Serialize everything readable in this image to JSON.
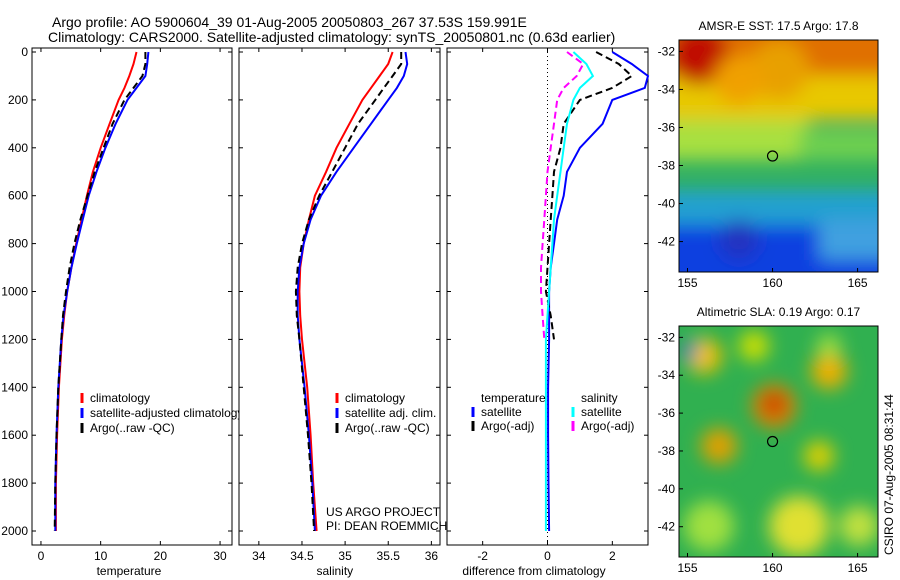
{
  "title_line1": "Argo profile: AO 5900604_39 01-Aug-2005 20050803_267 37.53S 159.991E",
  "title_line2": "Climatology: CARS2000. Satellite-adjusted climatology: synTS_20050801.nc (0.63d earlier)",
  "credit": [
    "US ARGO PROJECT",
    "PI: DEAN ROEMMICH"
  ],
  "side_stamp": "CSIRO 07-Aug-2005 08:31:44",
  "chart_data": [
    {
      "type": "line",
      "xlabel": "temperature",
      "xlim": [
        -1.5,
        32
      ],
      "xticks": [
        0,
        10,
        20,
        30
      ],
      "ylim": [
        0,
        2000
      ],
      "yticks": [
        0,
        200,
        400,
        600,
        800,
        1000,
        1200,
        1400,
        1600,
        1800,
        2000
      ],
      "yreversed": true,
      "pressure": [
        0,
        50,
        100,
        150,
        200,
        300,
        400,
        500,
        600,
        700,
        800,
        900,
        1000,
        1100,
        1200,
        1400,
        1600,
        1800,
        2000
      ],
      "legend": [
        "climatology",
        "satellite-adjusted climatology",
        "Argo(..raw -QC)"
      ],
      "series": [
        {
          "name": "climatology",
          "color": "#ff0000",
          "dash": false,
          "values": [
            16,
            15.5,
            14.8,
            14,
            13,
            11.5,
            10,
            8.7,
            7.7,
            6.8,
            5.9,
            5.1,
            4.4,
            3.9,
            3.5,
            3.0,
            2.7,
            2.5,
            2.5
          ]
        },
        {
          "name": "satellite-adjusted climatology",
          "color": "#0000ff",
          "dash": false,
          "values": [
            18,
            17.8,
            17.5,
            16,
            14.5,
            12.5,
            10.8,
            9.3,
            8.0,
            7.0,
            6.0,
            5.1,
            4.4,
            3.8,
            3.4,
            2.9,
            2.6,
            2.4,
            2.4
          ]
        },
        {
          "name": "Argo(..raw -QC)",
          "color": "#000000",
          "dash": true,
          "values": [
            17.5,
            17.5,
            17,
            15.5,
            14,
            12,
            10.5,
            9,
            7.8,
            6.6,
            5.6,
            4.8,
            4.2,
            3.7,
            3.4,
            2.9,
            2.6,
            2.4,
            2.3
          ]
        }
      ]
    },
    {
      "type": "line",
      "xlabel": "salinity",
      "xlim": [
        33.77,
        36.1
      ],
      "xticks": [
        34,
        34.5,
        35,
        35.5,
        36
      ],
      "ylim": [
        0,
        2000
      ],
      "yreversed": true,
      "pressure": [
        0,
        50,
        100,
        150,
        200,
        300,
        400,
        500,
        600,
        700,
        800,
        900,
        1000,
        1100,
        1200,
        1400,
        1600,
        1800,
        2000
      ],
      "legend": [
        "climatology",
        "satellite adj. clim.",
        "Argo(..raw -QC)"
      ],
      "series": [
        {
          "name": "climatology",
          "color": "#ff0000",
          "dash": false,
          "values": [
            35.55,
            35.5,
            35.4,
            35.3,
            35.2,
            35.05,
            34.9,
            34.78,
            34.65,
            34.58,
            34.52,
            34.48,
            34.47,
            34.48,
            34.5,
            34.56,
            34.6,
            34.63,
            34.67
          ]
        },
        {
          "name": "satellite adj. clim.",
          "color": "#0000ff",
          "dash": false,
          "values": [
            35.7,
            35.72,
            35.68,
            35.6,
            35.5,
            35.3,
            35.1,
            34.9,
            34.72,
            34.6,
            34.52,
            34.47,
            34.45,
            34.45,
            34.47,
            34.53,
            34.58,
            34.62,
            34.65
          ]
        },
        {
          "name": "Argo(..raw -QC)",
          "color": "#000000",
          "dash": true,
          "values": [
            35.65,
            35.65,
            35.55,
            35.45,
            35.35,
            35.15,
            35.0,
            34.85,
            34.7,
            34.58,
            34.5,
            34.45,
            34.43,
            34.44,
            34.47,
            34.52,
            34.57,
            34.61,
            34.64
          ]
        }
      ]
    },
    {
      "type": "line",
      "xlabel": "difference from climatology",
      "xlim": [
        -3.1,
        3.1
      ],
      "xticks": [
        -2,
        0,
        2
      ],
      "ylim": [
        0,
        2000
      ],
      "yreversed": true,
      "pressure": [
        0,
        50,
        100,
        150,
        200,
        300,
        400,
        500,
        600,
        700,
        800,
        900,
        1000,
        1100,
        1200,
        1400,
        1600,
        1800,
        2000
      ],
      "legend_headers": [
        "temperature",
        "salinity"
      ],
      "legend": [
        "satellite",
        "Argo(-adj)",
        "satellite",
        "Argo(-adj)"
      ],
      "series": [
        {
          "name": "temperature satellite",
          "color": "#0000ff",
          "dash": false,
          "values": [
            2,
            2.6,
            3.5,
            3,
            2,
            1.7,
            1.0,
            0.6,
            0.5,
            0.3,
            0.2,
            0.1,
            0.05,
            0.05,
            0.05,
            0.02,
            0.02,
            0.03,
            0.05
          ]
        },
        {
          "name": "temperature Argo(-adj)",
          "color": "#000000",
          "dash": true,
          "values": [
            1.5,
            2.2,
            2.6,
            2.0,
            1.0,
            0.5,
            0.4,
            0.2,
            0.15,
            0.1,
            0.05,
            0.0,
            -0.05,
            0.1,
            0.2,
            null,
            null,
            null,
            null
          ]
        },
        {
          "name": "salinity satellite",
          "color": "#00ffff",
          "dash": false,
          "values": [
            0.8,
            1.2,
            1.4,
            1.0,
            0.8,
            0.6,
            0.5,
            0.4,
            0.3,
            0.2,
            0.15,
            0.1,
            0.05,
            0,
            -0.05,
            -0.05,
            -0.05,
            -0.05,
            -0.05
          ]
        },
        {
          "name": "salinity Argo(-adj)",
          "color": "#ff00ff",
          "dash": true,
          "values": [
            0.6,
            1.1,
            0.9,
            0.5,
            0.3,
            0.2,
            0.1,
            0.0,
            -0.05,
            -0.1,
            -0.15,
            -0.2,
            -0.2,
            -0.15,
            -0.1,
            null,
            null,
            null,
            null
          ]
        }
      ]
    },
    {
      "type": "heatmap",
      "title": "AMSR-E SST: 17.5 Argo: 17.8",
      "xlim": [
        154.5,
        166.2
      ],
      "ylim": [
        -43.6,
        -31.4
      ],
      "xticks": [
        155,
        160,
        165
      ],
      "yticks": [
        -32,
        -34,
        -36,
        -38,
        -40,
        -42
      ],
      "marker": [
        160,
        -37.5
      ]
    },
    {
      "type": "heatmap",
      "title": "Altimetric SLA: 0.19 Argo: 0.17",
      "xlim": [
        154.5,
        166.2
      ],
      "ylim": [
        -43.6,
        -31.4
      ],
      "xticks": [
        155,
        160,
        165
      ],
      "yticks": [
        -32,
        -34,
        -36,
        -38,
        -40,
        -42
      ],
      "marker": [
        160,
        -37.5
      ]
    }
  ]
}
